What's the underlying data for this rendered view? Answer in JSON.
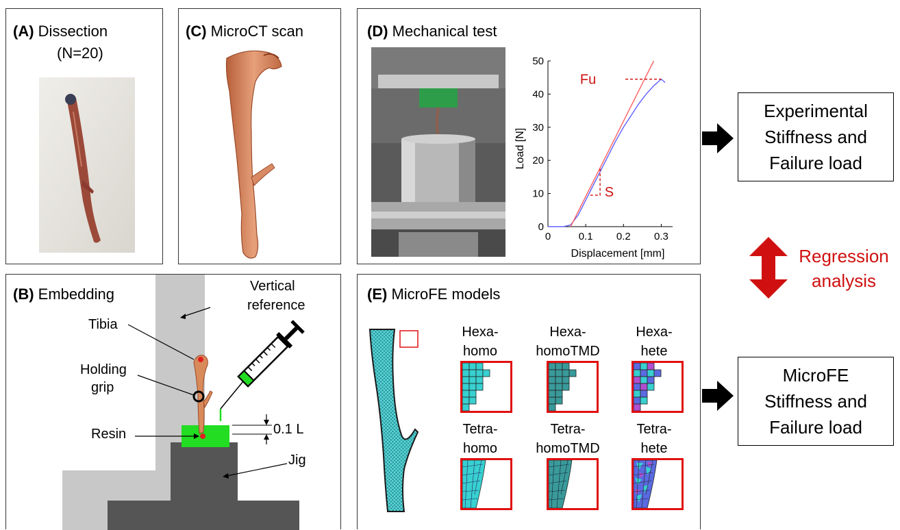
{
  "panels": {
    "a": {
      "letter": "(A)",
      "title": "Dissection",
      "subtitle": "(N=20)"
    },
    "b": {
      "letter": "(B)",
      "title": "Embedding",
      "labels": {
        "vertical_reference_1": "Vertical",
        "vertical_reference_2": "reference",
        "tibia": "Tibia",
        "holding_1": "Holding",
        "holding_2": "grip",
        "resin": "Resin",
        "length": "0.1 L",
        "jig": "Jig"
      }
    },
    "c": {
      "letter": "(C)",
      "title": "MicroCT scan"
    },
    "d": {
      "letter": "(D)",
      "title": "Mechanical test"
    },
    "e": {
      "letter": "(E)",
      "title": "MicroFE models",
      "models": [
        {
          "line1": "Hexa-",
          "line2": "homo"
        },
        {
          "line1": "Hexa-",
          "line2": "homoTMD"
        },
        {
          "line1": "Hexa-",
          "line2": "hete"
        },
        {
          "line1": "Tetra-",
          "line2": "homo"
        },
        {
          "line1": "Tetra-",
          "line2": "homoTMD"
        },
        {
          "line1": "Tetra-",
          "line2": "hete"
        }
      ]
    }
  },
  "outputs": {
    "experimental": {
      "line1": "Experimental",
      "line2": "Stiffness and",
      "line3": "Failure load"
    },
    "microfe": {
      "line1": "MicroFE",
      "line2": "Stiffness and",
      "line3": "Failure load"
    }
  },
  "regression": {
    "line1": "Regression",
    "line2": "analysis"
  },
  "colors": {
    "red": "#d01010",
    "bone": "#d98a5a",
    "resin": "#22dd22",
    "jig_dark": "#555555",
    "jig_light": "#c8c8c8",
    "mesh": "#38c9c9"
  },
  "chart_data": {
    "type": "line",
    "xlabel": "Displacement [mm]",
    "ylabel": "Load [N]",
    "xlim": [
      0,
      0.33
    ],
    "ylim": [
      0,
      50
    ],
    "xticks": [
      "0",
      "0.1",
      "0.2",
      "0.3"
    ],
    "yticks": [
      "0",
      "10",
      "20",
      "30",
      "40",
      "50"
    ],
    "annotations": [
      "Fu",
      "S"
    ],
    "series": [
      {
        "color": "#6060ff",
        "x": [
          0,
          0.04,
          0.06,
          0.08,
          0.1,
          0.12,
          0.14,
          0.16,
          0.18,
          0.2,
          0.22,
          0.24,
          0.26,
          0.28,
          0.3,
          0.31
        ],
        "y": [
          0,
          0,
          0.5,
          3.5,
          8,
          12.5,
          17,
          21.5,
          26,
          30,
          33.5,
          37,
          40,
          42.5,
          44.5,
          43.5
        ]
      },
      {
        "color": "#ff6060",
        "x": [
          0.06,
          0.28
        ],
        "y": [
          0,
          50
        ]
      }
    ]
  }
}
